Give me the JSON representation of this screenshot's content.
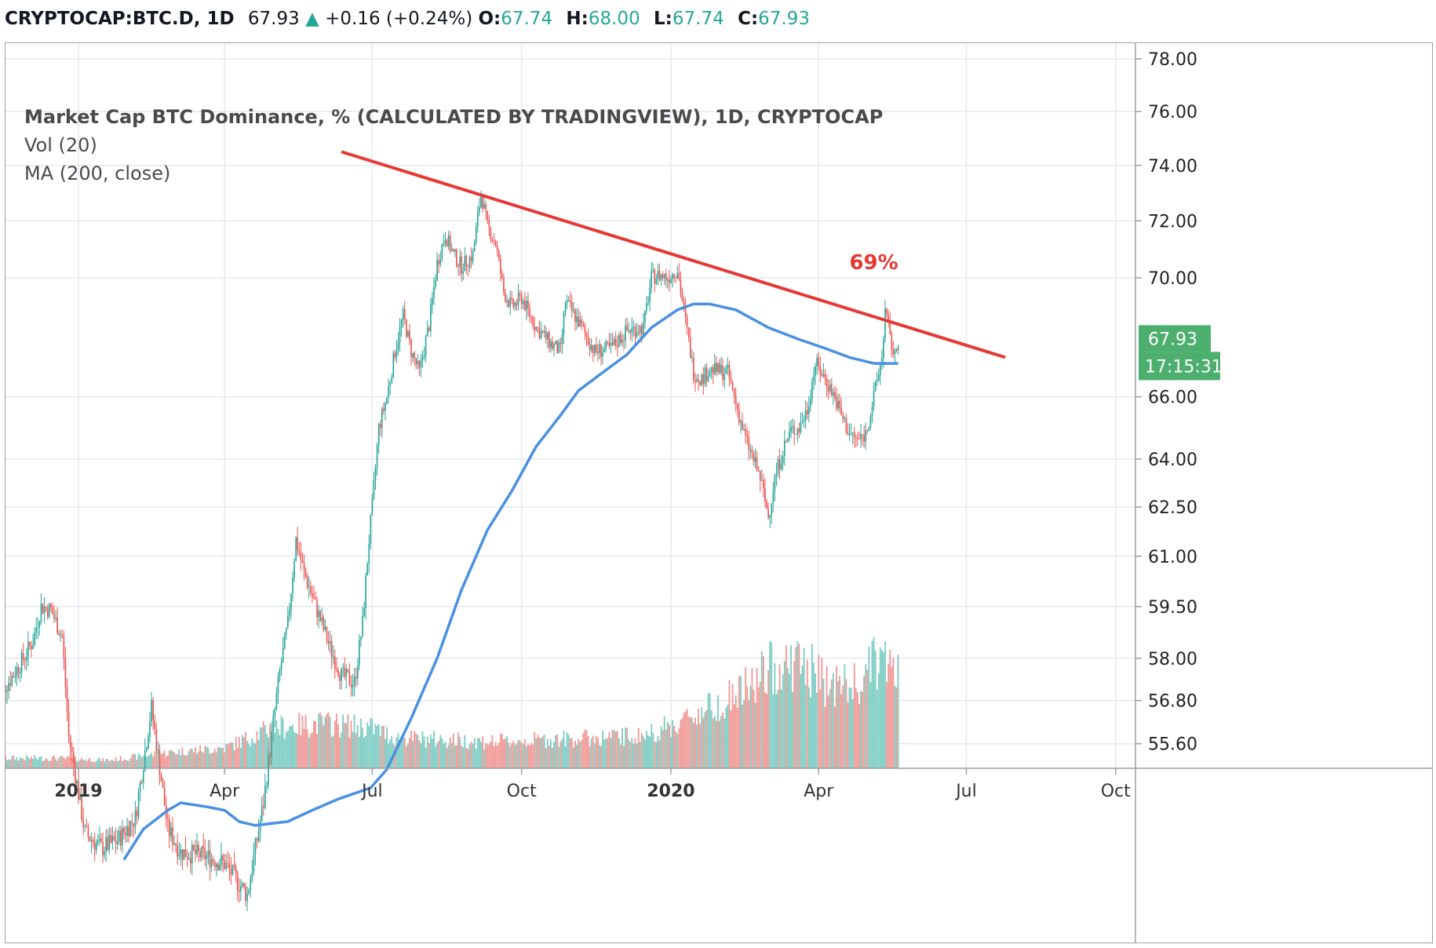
{
  "header": {
    "symbol": "CRYPTOCAP:BTC.D, 1D",
    "last": "67.93",
    "arrow": "▲",
    "change": "+0.16 (+0.24%)",
    "o_label": "O:",
    "o_value": "67.74",
    "h_label": "H:",
    "h_value": "68.00",
    "l_label": "L:",
    "l_value": "67.74",
    "c_label": "C:",
    "c_value": "67.93"
  },
  "legend": {
    "title": "Market Cap BTC Dominance, % (CALCULATED BY TRADINGVIEW), 1D, CRYPTOCAP",
    "volume": "Vol (20)",
    "ma": "MA (200, close)"
  },
  "chart_data": {
    "type": "line",
    "subtype": "candlestick",
    "y_ticks": [
      "78.00",
      "76.00",
      "74.00",
      "72.00",
      "70.00",
      "67.93",
      "66.00",
      "64.00",
      "62.50",
      "61.00",
      "59.50",
      "58.00",
      "56.80",
      "55.60"
    ],
    "y_tick_values": [
      78,
      76,
      74,
      72,
      70,
      67.93,
      66,
      64,
      62.5,
      61,
      59.5,
      58,
      56.8,
      55.6
    ],
    "y_scale": "log",
    "x_ticks": [
      {
        "label": "2019",
        "date": "2019-01-01",
        "bold": true
      },
      {
        "label": "Apr",
        "date": "2019-04-01",
        "bold": false
      },
      {
        "label": "Jul",
        "date": "2019-07-01",
        "bold": false
      },
      {
        "label": "Oct",
        "date": "2019-10-01",
        "bold": false
      },
      {
        "label": "2020",
        "date": "2020-01-01",
        "bold": true
      },
      {
        "label": "Apr",
        "date": "2020-04-01",
        "bold": false
      },
      {
        "label": "Jul",
        "date": "2020-07-01",
        "bold": false
      },
      {
        "label": "Oct",
        "date": "2020-10-01",
        "bold": false
      }
    ],
    "series": [
      {
        "name": "BTC.D",
        "style": "candles",
        "points": [
          {
            "x": "2018-11-12",
            "y": 56.9
          },
          {
            "x": "2018-11-20",
            "y": 57.4
          },
          {
            "x": "2018-11-27",
            "y": 57.9
          },
          {
            "x": "2018-12-04",
            "y": 58.5
          },
          {
            "x": "2018-12-09",
            "y": 59.5
          },
          {
            "x": "2018-12-15",
            "y": 59.4
          },
          {
            "x": "2018-12-22",
            "y": 58.6
          },
          {
            "x": "2018-12-26",
            "y": 55.8
          },
          {
            "x": "2019-01-05",
            "y": 53.2
          },
          {
            "x": "2019-01-15",
            "y": 52.8
          },
          {
            "x": "2019-01-25",
            "y": 53.0
          },
          {
            "x": "2019-02-05",
            "y": 53.6
          },
          {
            "x": "2019-02-15",
            "y": 56.6
          },
          {
            "x": "2019-02-25",
            "y": 53.3
          },
          {
            "x": "2019-03-05",
            "y": 52.7
          },
          {
            "x": "2019-03-20",
            "y": 52.6
          },
          {
            "x": "2019-04-01",
            "y": 52.4
          },
          {
            "x": "2019-04-15",
            "y": 51.6
          },
          {
            "x": "2019-04-25",
            "y": 54.0
          },
          {
            "x": "2019-05-05",
            "y": 57.6
          },
          {
            "x": "2019-05-10",
            "y": 59.0
          },
          {
            "x": "2019-05-15",
            "y": 61.5
          },
          {
            "x": "2019-05-20",
            "y": 60.5
          },
          {
            "x": "2019-05-25",
            "y": 59.8
          },
          {
            "x": "2019-06-05",
            "y": 58.3
          },
          {
            "x": "2019-06-12",
            "y": 57.5
          },
          {
            "x": "2019-06-20",
            "y": 57.3
          },
          {
            "x": "2019-06-25",
            "y": 59.0
          },
          {
            "x": "2019-06-29",
            "y": 61.5
          },
          {
            "x": "2019-07-01",
            "y": 62.5
          },
          {
            "x": "2019-07-05",
            "y": 65.0
          },
          {
            "x": "2019-07-10",
            "y": 66.0
          },
          {
            "x": "2019-07-15",
            "y": 67.5
          },
          {
            "x": "2019-07-20",
            "y": 68.7
          },
          {
            "x": "2019-07-25",
            "y": 67.5
          },
          {
            "x": "2019-07-30",
            "y": 66.8
          },
          {
            "x": "2019-08-05",
            "y": 68.4
          },
          {
            "x": "2019-08-10",
            "y": 70.5
          },
          {
            "x": "2019-08-15",
            "y": 71.5
          },
          {
            "x": "2019-08-20",
            "y": 70.8
          },
          {
            "x": "2019-08-25",
            "y": 70.4
          },
          {
            "x": "2019-09-01",
            "y": 70.8
          },
          {
            "x": "2019-09-06",
            "y": 73.0
          },
          {
            "x": "2019-09-10",
            "y": 71.8
          },
          {
            "x": "2019-09-15",
            "y": 71.2
          },
          {
            "x": "2019-09-20",
            "y": 69.5
          },
          {
            "x": "2019-09-25",
            "y": 69.0
          },
          {
            "x": "2019-10-01",
            "y": 69.3
          },
          {
            "x": "2019-10-10",
            "y": 68.3
          },
          {
            "x": "2019-10-20",
            "y": 67.7
          },
          {
            "x": "2019-10-25",
            "y": 67.5
          },
          {
            "x": "2019-10-28",
            "y": 69.2
          },
          {
            "x": "2019-11-05",
            "y": 68.5
          },
          {
            "x": "2019-11-15",
            "y": 67.5
          },
          {
            "x": "2019-11-25",
            "y": 67.6
          },
          {
            "x": "2019-12-05",
            "y": 68.2
          },
          {
            "x": "2019-12-15",
            "y": 68.3
          },
          {
            "x": "2019-12-20",
            "y": 70.0
          },
          {
            "x": "2019-12-25",
            "y": 70.1
          },
          {
            "x": "2019-12-30",
            "y": 70.0
          },
          {
            "x": "2020-01-05",
            "y": 70.3
          },
          {
            "x": "2020-01-10",
            "y": 68.5
          },
          {
            "x": "2020-01-15",
            "y": 66.8
          },
          {
            "x": "2020-01-20",
            "y": 66.6
          },
          {
            "x": "2020-01-25",
            "y": 66.9
          },
          {
            "x": "2020-02-05",
            "y": 66.8
          },
          {
            "x": "2020-02-15",
            "y": 64.8
          },
          {
            "x": "2020-02-25",
            "y": 63.4
          },
          {
            "x": "2020-03-01",
            "y": 62.2
          },
          {
            "x": "2020-03-05",
            "y": 63.4
          },
          {
            "x": "2020-03-10",
            "y": 64.3
          },
          {
            "x": "2020-03-15",
            "y": 64.9
          },
          {
            "x": "2020-03-20",
            "y": 65.0
          },
          {
            "x": "2020-03-25",
            "y": 65.6
          },
          {
            "x": "2020-03-30",
            "y": 67.1
          },
          {
            "x": "2020-04-05",
            "y": 66.6
          },
          {
            "x": "2020-04-10",
            "y": 66.1
          },
          {
            "x": "2020-04-15",
            "y": 65.4
          },
          {
            "x": "2020-04-20",
            "y": 64.8
          },
          {
            "x": "2020-04-25",
            "y": 64.6
          },
          {
            "x": "2020-04-30",
            "y": 64.8
          },
          {
            "x": "2020-05-05",
            "y": 66.0
          },
          {
            "x": "2020-05-10",
            "y": 67.3
          },
          {
            "x": "2020-05-12",
            "y": 68.9
          },
          {
            "x": "2020-05-15",
            "y": 67.9
          },
          {
            "x": "2020-05-18",
            "y": 67.3
          },
          {
            "x": "2020-05-20",
            "y": 67.93
          }
        ]
      },
      {
        "name": "MA (200, close)",
        "style": "line",
        "color": "#4a90e2",
        "points": [
          {
            "x": "2019-01-29",
            "y": 52.5
          },
          {
            "x": "2019-02-10",
            "y": 53.3
          },
          {
            "x": "2019-02-25",
            "y": 53.8
          },
          {
            "x": "2019-03-05",
            "y": 54.0
          },
          {
            "x": "2019-03-20",
            "y": 53.9
          },
          {
            "x": "2019-04-01",
            "y": 53.8
          },
          {
            "x": "2019-04-10",
            "y": 53.5
          },
          {
            "x": "2019-04-20",
            "y": 53.4
          },
          {
            "x": "2019-05-10",
            "y": 53.5
          },
          {
            "x": "2019-05-25",
            "y": 53.8
          },
          {
            "x": "2019-06-10",
            "y": 54.1
          },
          {
            "x": "2019-06-30",
            "y": 54.4
          },
          {
            "x": "2019-07-10",
            "y": 54.9
          },
          {
            "x": "2019-07-25",
            "y": 56.3
          },
          {
            "x": "2019-08-10",
            "y": 58.0
          },
          {
            "x": "2019-08-25",
            "y": 60.0
          },
          {
            "x": "2019-09-10",
            "y": 61.8
          },
          {
            "x": "2019-09-25",
            "y": 63.0
          },
          {
            "x": "2019-10-10",
            "y": 64.4
          },
          {
            "x": "2019-10-25",
            "y": 65.4
          },
          {
            "x": "2019-11-05",
            "y": 66.2
          },
          {
            "x": "2019-11-20",
            "y": 66.8
          },
          {
            "x": "2019-12-05",
            "y": 67.4
          },
          {
            "x": "2019-12-20",
            "y": 68.3
          },
          {
            "x": "2020-01-05",
            "y": 68.9
          },
          {
            "x": "2020-01-15",
            "y": 69.1
          },
          {
            "x": "2020-01-25",
            "y": 69.1
          },
          {
            "x": "2020-02-10",
            "y": 68.9
          },
          {
            "x": "2020-03-01",
            "y": 68.3
          },
          {
            "x": "2020-03-20",
            "y": 67.9
          },
          {
            "x": "2020-04-05",
            "y": 67.6
          },
          {
            "x": "2020-04-20",
            "y": 67.3
          },
          {
            "x": "2020-05-05",
            "y": 67.1
          },
          {
            "x": "2020-05-20",
            "y": 67.1
          }
        ]
      },
      {
        "name": "Vol (20)",
        "style": "volume",
        "points": [
          {
            "x": "2018-11-12",
            "v": 0.05
          },
          {
            "x": "2018-12-15",
            "v": 0.05
          },
          {
            "x": "2019-01-20",
            "v": 0.04
          },
          {
            "x": "2019-03-01",
            "v": 0.08
          },
          {
            "x": "2019-04-01",
            "v": 0.1
          },
          {
            "x": "2019-05-01",
            "v": 0.2
          },
          {
            "x": "2019-06-01",
            "v": 0.22
          },
          {
            "x": "2019-07-01",
            "v": 0.2
          },
          {
            "x": "2019-07-15",
            "v": 0.15
          },
          {
            "x": "2019-08-15",
            "v": 0.14
          },
          {
            "x": "2019-09-15",
            "v": 0.13
          },
          {
            "x": "2019-10-15",
            "v": 0.14
          },
          {
            "x": "2019-11-15",
            "v": 0.15
          },
          {
            "x": "2019-12-15",
            "v": 0.16
          },
          {
            "x": "2020-01-05",
            "v": 0.22
          },
          {
            "x": "2020-01-25",
            "v": 0.3
          },
          {
            "x": "2020-02-15",
            "v": 0.38
          },
          {
            "x": "2020-03-05",
            "v": 0.5
          },
          {
            "x": "2020-03-20",
            "v": 0.52
          },
          {
            "x": "2020-04-05",
            "v": 0.42
          },
          {
            "x": "2020-04-25",
            "v": 0.4
          },
          {
            "x": "2020-05-10",
            "v": 0.55
          },
          {
            "x": "2020-05-20",
            "v": 0.45
          }
        ]
      }
    ],
    "trendline": {
      "from": {
        "x": "2019-06-12",
        "y": 74.5
      },
      "to": {
        "x": "2020-07-25",
        "y": 67.3
      },
      "color": "#e53935"
    },
    "annotation": {
      "text": "69%",
      "x": "2020-05-05",
      "y": 70.3,
      "color": "#e53935"
    },
    "price_tag": {
      "value": "67.93",
      "countdown": "17:15:31",
      "color": "#4caf6e"
    },
    "grid": true,
    "colors": {
      "up": "#26a69a",
      "down": "#ef5350",
      "vol_up": "#7fcdc4",
      "vol_down": "#f09a96",
      "grid": "#e4e9f0"
    }
  }
}
